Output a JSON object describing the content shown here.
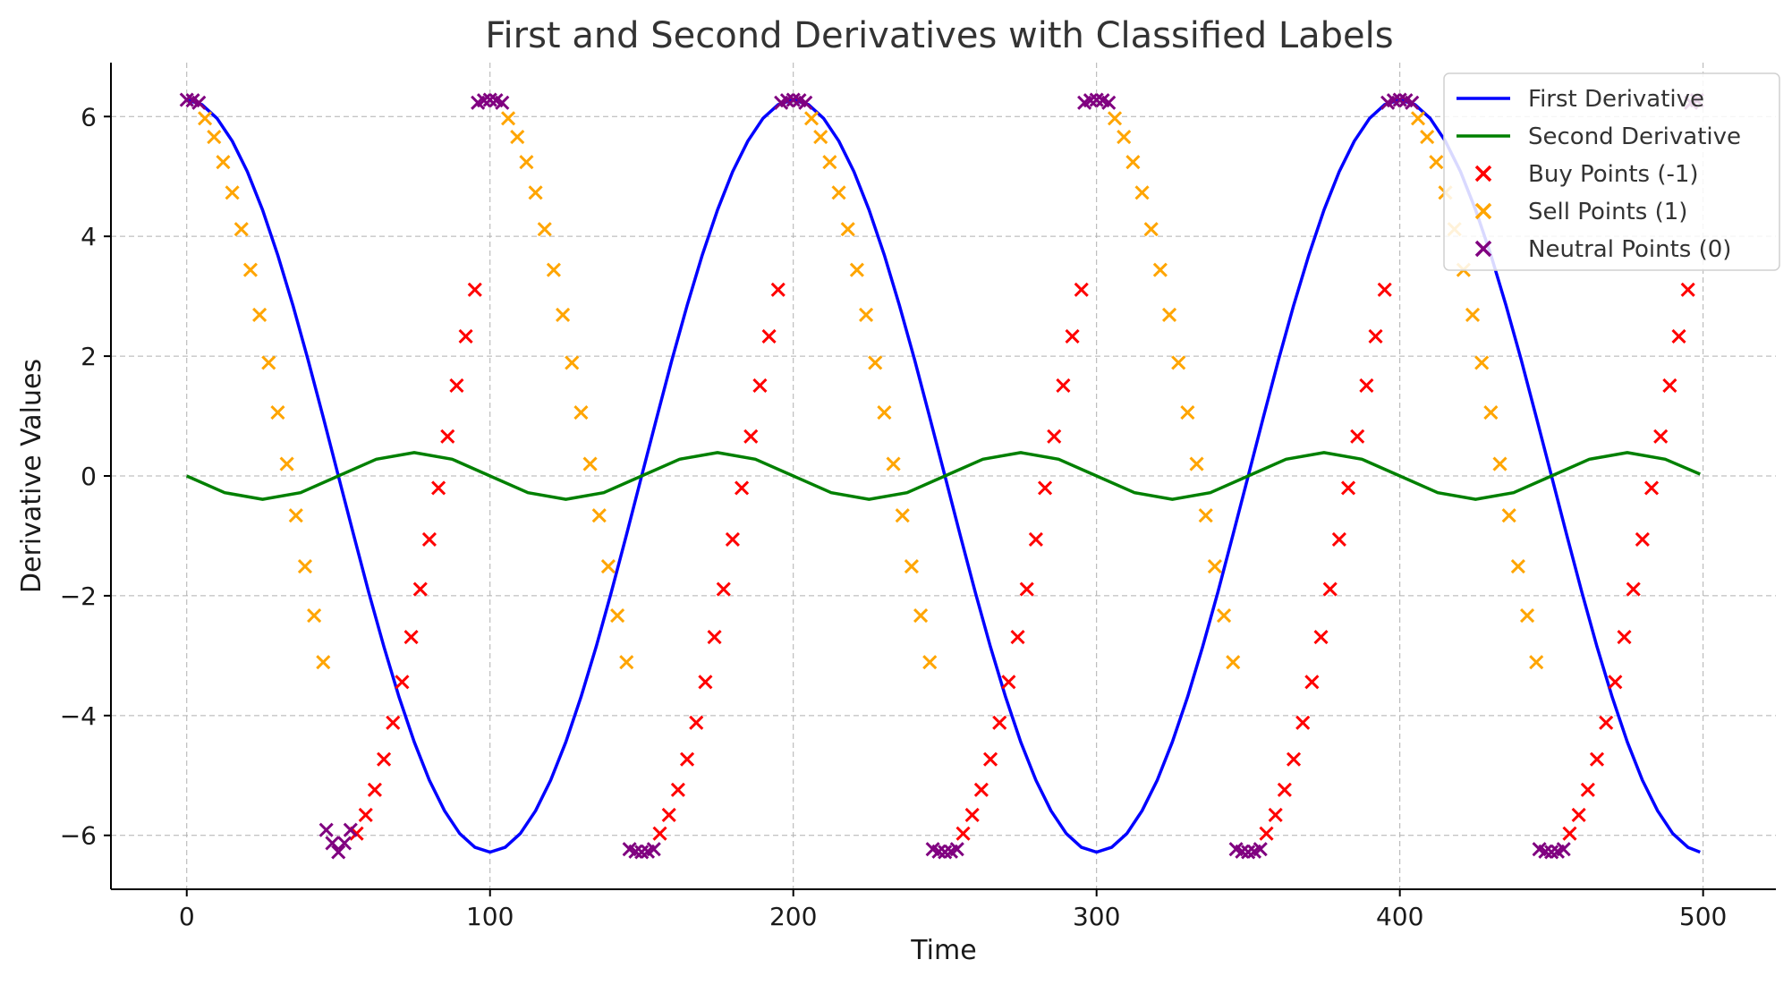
{
  "colors": {
    "first_derivative": "#0000ff",
    "second_derivative": "#008000",
    "buy": "#ff0000",
    "sell": "#ffa500",
    "neutral": "#800080",
    "grid": "#b0b0b0"
  },
  "chart_data": {
    "type": "line",
    "title": "First and Second Derivatives with Classified Labels",
    "xlabel": "Time",
    "ylabel": "Derivative Values",
    "xlim": [
      -25,
      524
    ],
    "ylim": [
      -6.9,
      6.9
    ],
    "xticks": [
      0,
      100,
      200,
      300,
      400,
      500
    ],
    "yticks": [
      -6,
      -4,
      -2,
      0,
      2,
      4,
      6
    ],
    "ytick_labels": [
      "−6",
      "−4",
      "−2",
      "0",
      "2",
      "4",
      "6"
    ],
    "grid": true,
    "legend_position": "top-right",
    "series": [
      {
        "name": "First Derivative",
        "kind": "line",
        "color": "#0000ff",
        "x": [
          0,
          5,
          10,
          15,
          20,
          25,
          30,
          35,
          40,
          45,
          50,
          55,
          60,
          65,
          70,
          75,
          80,
          85,
          90,
          95,
          100,
          105,
          110,
          115,
          120,
          125,
          130,
          135,
          140,
          145,
          150,
          155,
          160,
          165,
          170,
          175,
          180,
          185,
          190,
          195,
          200,
          205,
          210,
          215,
          220,
          225,
          230,
          235,
          240,
          245,
          250,
          255,
          260,
          265,
          270,
          275,
          280,
          285,
          290,
          295,
          300,
          305,
          310,
          315,
          320,
          325,
          330,
          335,
          340,
          345,
          350,
          355,
          360,
          365,
          370,
          375,
          380,
          385,
          390,
          395,
          400,
          405,
          410,
          415,
          420,
          425,
          430,
          435,
          440,
          445,
          450,
          455,
          460,
          465,
          470,
          475,
          480,
          485,
          490,
          495,
          499
        ],
        "y": [
          6.28,
          6.2,
          5.97,
          5.59,
          5.08,
          4.44,
          3.69,
          2.85,
          1.94,
          0.98,
          0.0,
          -0.98,
          -1.94,
          -2.85,
          -3.69,
          -4.44,
          -5.08,
          -5.59,
          -5.97,
          -6.2,
          -6.28,
          -6.2,
          -5.97,
          -5.59,
          -5.08,
          -4.44,
          -3.69,
          -2.85,
          -1.94,
          -0.98,
          0.0,
          0.98,
          1.94,
          2.85,
          3.69,
          4.44,
          5.08,
          5.59,
          5.97,
          6.2,
          6.28,
          6.2,
          5.97,
          5.59,
          5.08,
          4.44,
          3.69,
          2.85,
          1.94,
          0.98,
          0.0,
          -0.98,
          -1.94,
          -2.85,
          -3.69,
          -4.44,
          -5.08,
          -5.59,
          -5.97,
          -6.2,
          -6.28,
          -6.2,
          -5.97,
          -5.59,
          -5.08,
          -4.44,
          -3.69,
          -2.85,
          -1.94,
          -0.98,
          0.0,
          0.98,
          1.94,
          2.85,
          3.69,
          4.44,
          5.08,
          5.59,
          5.97,
          6.2,
          6.28,
          6.2,
          5.97,
          5.59,
          5.08,
          4.44,
          3.69,
          2.85,
          1.94,
          0.98,
          0.0,
          -0.98,
          -1.94,
          -2.85,
          -3.69,
          -4.44,
          -5.08,
          -5.59,
          -5.97,
          -6.2,
          -6.28
        ]
      },
      {
        "name": "Second Derivative",
        "kind": "line",
        "color": "#008000",
        "x": [
          0,
          12.5,
          25,
          37.5,
          50,
          62.5,
          75,
          87.5,
          100,
          112.5,
          125,
          137.5,
          150,
          162.5,
          175,
          187.5,
          200,
          212.5,
          225,
          237.5,
          250,
          262.5,
          275,
          287.5,
          300,
          312.5,
          325,
          337.5,
          350,
          362.5,
          375,
          387.5,
          400,
          412.5,
          425,
          437.5,
          450,
          462.5,
          475,
          487.5,
          499
        ],
        "y": [
          0.0,
          -0.28,
          -0.39,
          -0.28,
          0.0,
          0.28,
          0.39,
          0.28,
          0.0,
          -0.28,
          -0.39,
          -0.28,
          0.0,
          0.28,
          0.39,
          0.28,
          0.0,
          -0.28,
          -0.39,
          -0.28,
          0.0,
          0.28,
          0.39,
          0.28,
          0.0,
          -0.28,
          -0.39,
          -0.28,
          0.0,
          0.28,
          0.39,
          0.28,
          0.0,
          -0.28,
          -0.39,
          -0.28,
          0.0,
          0.28,
          0.39,
          0.28,
          0.03
        ]
      },
      {
        "name": "Buy Points (-1)",
        "kind": "scatter",
        "marker": "x",
        "color": "#ff0000",
        "x": [
          56,
          59,
          62,
          65,
          68,
          71,
          74,
          77,
          80,
          83,
          86,
          89,
          92,
          95,
          156,
          159,
          162,
          165,
          168,
          171,
          174,
          177,
          180,
          183,
          186,
          189,
          192,
          195,
          256,
          259,
          262,
          265,
          268,
          271,
          274,
          277,
          280,
          283,
          286,
          289,
          292,
          295,
          356,
          359,
          362,
          365,
          368,
          371,
          374,
          377,
          380,
          383,
          386,
          389,
          392,
          395,
          456,
          459,
          462,
          465,
          468,
          471,
          474,
          477,
          480,
          483,
          486,
          489,
          492,
          495
        ],
        "y": [
          -5.97,
          -5.66,
          -5.24,
          -4.73,
          -4.12,
          -3.44,
          -2.69,
          -1.89,
          -1.06,
          -0.2,
          0.66,
          1.51,
          2.33,
          3.11,
          -5.97,
          -5.66,
          -5.24,
          -4.73,
          -4.12,
          -3.44,
          -2.69,
          -1.89,
          -1.06,
          -0.2,
          0.66,
          1.51,
          2.33,
          3.11,
          -5.97,
          -5.66,
          -5.24,
          -4.73,
          -4.12,
          -3.44,
          -2.69,
          -1.89,
          -1.06,
          -0.2,
          0.66,
          1.51,
          2.33,
          3.11,
          -5.97,
          -5.66,
          -5.24,
          -4.73,
          -4.12,
          -3.44,
          -2.69,
          -1.89,
          -1.06,
          -0.2,
          0.66,
          1.51,
          2.33,
          3.11,
          -5.97,
          -5.66,
          -5.24,
          -4.73,
          -4.12,
          -3.44,
          -2.69,
          -1.89,
          -1.06,
          -0.2,
          0.66,
          1.51,
          2.33,
          3.11
        ]
      },
      {
        "name": "Sell Points (1)",
        "kind": "scatter",
        "marker": "x",
        "color": "#ffa500",
        "x": [
          6,
          9,
          12,
          15,
          18,
          21,
          24,
          27,
          30,
          33,
          36,
          39,
          42,
          45,
          106,
          109,
          112,
          115,
          118,
          121,
          124,
          127,
          130,
          133,
          136,
          139,
          142,
          145,
          206,
          209,
          212,
          215,
          218,
          221,
          224,
          227,
          230,
          233,
          236,
          239,
          242,
          245,
          306,
          309,
          312,
          315,
          318,
          321,
          324,
          327,
          330,
          333,
          336,
          339,
          342,
          345,
          406,
          409,
          412,
          415,
          418,
          421,
          424,
          427,
          430,
          433,
          436,
          439,
          442,
          445
        ],
        "y": [
          5.97,
          5.66,
          5.24,
          4.73,
          4.12,
          3.44,
          2.69,
          1.89,
          1.06,
          0.2,
          -0.66,
          -1.51,
          -2.33,
          -3.11,
          5.97,
          5.66,
          5.24,
          4.73,
          4.12,
          3.44,
          2.69,
          1.89,
          1.06,
          0.2,
          -0.66,
          -1.51,
          -2.33,
          -3.11,
          5.97,
          5.66,
          5.24,
          4.73,
          4.12,
          3.44,
          2.69,
          1.89,
          1.06,
          0.2,
          -0.66,
          -1.51,
          -2.33,
          -3.11,
          5.97,
          5.66,
          5.24,
          4.73,
          4.12,
          3.44,
          2.69,
          1.89,
          1.06,
          0.2,
          -0.66,
          -1.51,
          -2.33,
          -3.11,
          5.97,
          5.66,
          5.24,
          4.73,
          4.12,
          3.44,
          2.69,
          1.89,
          1.06,
          0.2,
          -0.66,
          -1.51,
          -2.33,
          -3.11
        ]
      },
      {
        "name": "Neutral Points (0)",
        "kind": "scatter",
        "marker": "x",
        "color": "#800080",
        "x": [
          0,
          2,
          4,
          46,
          48,
          50,
          52,
          54,
          96,
          98,
          100,
          102,
          104,
          146,
          148,
          150,
          152,
          154,
          196,
          198,
          200,
          202,
          204,
          246,
          248,
          250,
          252,
          254,
          296,
          298,
          300,
          302,
          304,
          346,
          348,
          350,
          352,
          354,
          396,
          398,
          400,
          402,
          404,
          446,
          448,
          450,
          452,
          454,
          496,
          498
        ],
        "y": [
          6.28,
          6.27,
          6.23,
          -5.91,
          -6.13,
          -6.28,
          -6.13,
          -5.91,
          6.23,
          6.27,
          6.28,
          6.27,
          6.23,
          -6.23,
          -6.27,
          -6.28,
          -6.27,
          -6.23,
          6.23,
          6.27,
          6.28,
          6.27,
          6.23,
          -6.23,
          -6.27,
          -6.28,
          -6.27,
          -6.23,
          6.23,
          6.27,
          6.28,
          6.27,
          6.23,
          -6.23,
          -6.27,
          -6.28,
          -6.27,
          -6.23,
          6.23,
          6.27,
          6.28,
          6.27,
          6.23,
          -6.23,
          -6.27,
          -6.28,
          -6.27,
          -6.23,
          6.23,
          6.27
        ]
      }
    ]
  }
}
